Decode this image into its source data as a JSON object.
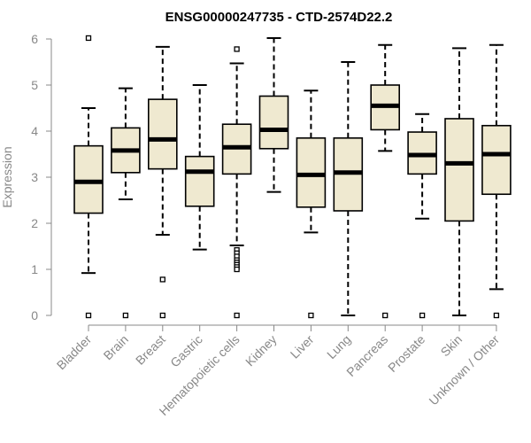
{
  "chart_data": {
    "type": "boxplot",
    "title": "ENSG00000247735 - CTD-2574D22.2",
    "xlabel": "",
    "ylabel": "Expression",
    "ylim": [
      0,
      6
    ],
    "yticks": [
      "0",
      "1",
      "2",
      "3",
      "4",
      "5",
      "6"
    ],
    "box_color": "#efe9d0",
    "line_color": "#000000",
    "axis_color": "#888888",
    "categories": [
      "Bladder",
      "Brain",
      "Breast",
      "Gastric",
      "Hematopoietic cells",
      "Kidney",
      "Liver",
      "Lung",
      "Pancreas",
      "Prostate",
      "Skin",
      "Unknown / Other"
    ],
    "boxes": [
      {
        "name": "Bladder",
        "whisker_low": 0.92,
        "q1": 2.22,
        "median": 2.9,
        "q3": 3.68,
        "whisker_high": 4.5,
        "outliers": [
          6.02,
          0.0
        ]
      },
      {
        "name": "Brain",
        "whisker_low": 2.52,
        "q1": 3.1,
        "median": 3.58,
        "q3": 4.07,
        "whisker_high": 4.93,
        "outliers": [
          0.0
        ]
      },
      {
        "name": "Breast",
        "whisker_low": 1.75,
        "q1": 3.18,
        "median": 3.82,
        "q3": 4.69,
        "whisker_high": 5.83,
        "outliers": [
          0.78,
          0.0
        ]
      },
      {
        "name": "Gastric",
        "whisker_low": 1.43,
        "q1": 2.37,
        "median": 3.12,
        "q3": 3.45,
        "whisker_high": 5.0,
        "outliers": []
      },
      {
        "name": "Hematopoietic cells",
        "whisker_low": 1.52,
        "q1": 3.07,
        "median": 3.65,
        "q3": 4.15,
        "whisker_high": 5.47,
        "outliers": [
          5.78,
          1.42,
          1.35,
          1.28,
          1.2,
          1.15,
          1.1,
          1.05,
          1.0,
          0.0
        ]
      },
      {
        "name": "Kidney",
        "whisker_low": 2.68,
        "q1": 3.62,
        "median": 4.03,
        "q3": 4.76,
        "whisker_high": 6.02,
        "outliers": []
      },
      {
        "name": "Liver",
        "whisker_low": 1.8,
        "q1": 2.35,
        "median": 3.05,
        "q3": 3.85,
        "whisker_high": 4.88,
        "outliers": [
          0.0
        ]
      },
      {
        "name": "Lung",
        "whisker_low": 0.0,
        "q1": 2.27,
        "median": 3.1,
        "q3": 3.85,
        "whisker_high": 5.5,
        "outliers": []
      },
      {
        "name": "Pancreas",
        "whisker_low": 3.57,
        "q1": 4.03,
        "median": 4.55,
        "q3": 5.0,
        "whisker_high": 5.87,
        "outliers": [
          0.0
        ]
      },
      {
        "name": "Prostate",
        "whisker_low": 2.1,
        "q1": 3.07,
        "median": 3.48,
        "q3": 3.98,
        "whisker_high": 4.37,
        "outliers": [
          0.0
        ]
      },
      {
        "name": "Skin",
        "whisker_low": 0.0,
        "q1": 2.05,
        "median": 3.3,
        "q3": 4.27,
        "whisker_high": 5.8,
        "outliers": []
      },
      {
        "name": "Unknown / Other",
        "whisker_low": 0.57,
        "q1": 2.63,
        "median": 3.5,
        "q3": 4.12,
        "whisker_high": 5.87,
        "outliers": [
          0.0
        ]
      }
    ]
  }
}
